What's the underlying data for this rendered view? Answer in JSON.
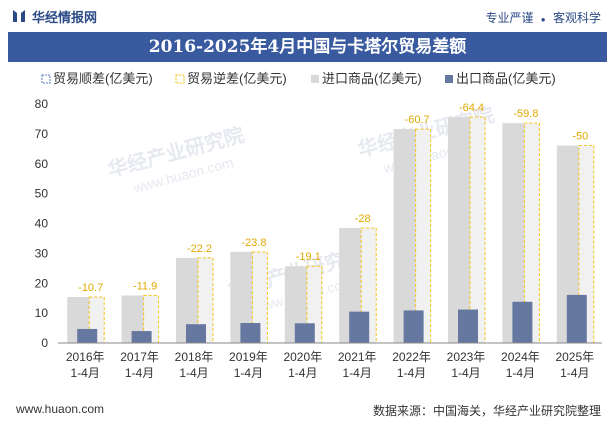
{
  "brand": {
    "name": "华经情报网",
    "tagline_left": "专业严谨",
    "tagline_sep": "●",
    "tagline_right": "客观科学"
  },
  "title": "2016-2025年4月中国与卡塔尔贸易差额",
  "footer": {
    "url": "www.huaon.com",
    "source": "数据来源：中国海关，华经产业研究院整理"
  },
  "watermarks": [
    "华经产业研究院",
    "www.huaon.com"
  ],
  "colors": {
    "import": "#d9d9d9",
    "export": "#6677a0",
    "deficit": "#f5c518",
    "accent": "#3a5aa0"
  },
  "chart_data": {
    "type": "bar",
    "categories": [
      "2016年\n1-4月",
      "2017年\n1-4月",
      "2018年\n1-4月",
      "2019年\n1-4月",
      "2020年\n1-4月",
      "2021年\n1-4月",
      "2022年\n1-4月",
      "2023年\n1-4月",
      "2024年\n1-4月",
      "2025年\n1-4月"
    ],
    "series": [
      {
        "name": "贸易顺差(亿美元)",
        "values": [
          0,
          0,
          0,
          0,
          0,
          0,
          0,
          0,
          0,
          0
        ]
      },
      {
        "name": "贸易逆差(亿美元)",
        "values": [
          -10.7,
          -11.9,
          -22.2,
          -23.8,
          -19.1,
          -28,
          -60.7,
          -64.4,
          -59.8,
          -50
        ]
      },
      {
        "name": "进口商品(亿美元)",
        "values": [
          15.4,
          15.9,
          28.5,
          30.5,
          25.7,
          38.5,
          71.6,
          75.6,
          73.6,
          66.1
        ]
      },
      {
        "name": "出口商品(亿美元)",
        "values": [
          4.7,
          4.0,
          6.3,
          6.7,
          6.6,
          10.5,
          10.9,
          11.2,
          13.8,
          16.1
        ]
      }
    ],
    "data_labels": [
      "-10.7",
      "-11.9",
      "-22.2",
      "-23.8",
      "-19.1",
      "-28",
      "-60.7",
      "-64.4",
      "-59.8",
      "-50"
    ],
    "ylim": [
      0,
      80
    ],
    "yticks": [
      0,
      10,
      20,
      30,
      40,
      50,
      60,
      70,
      80
    ],
    "grid": false,
    "legend": "top"
  }
}
